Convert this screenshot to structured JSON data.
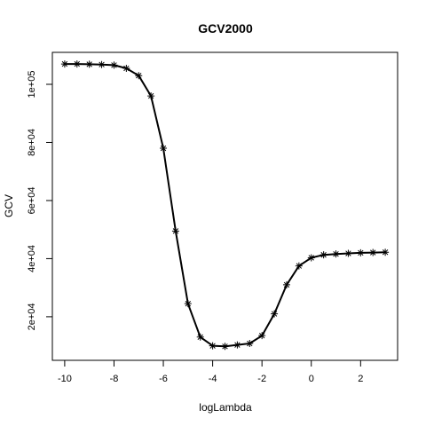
{
  "chart_data": {
    "type": "line",
    "title": "GCV2000",
    "xlabel": "logLambda",
    "ylabel": "GCV",
    "xlim": [
      -10.5,
      3.5
    ],
    "ylim": [
      5000,
      111000
    ],
    "grid": false,
    "x_ticks": [
      -10,
      -8,
      -6,
      -4,
      -2,
      0,
      2
    ],
    "x_tick_labels": [
      "-10",
      "-8",
      "-6",
      "-4",
      "-2",
      "0",
      "2"
    ],
    "y_ticks": [
      20000,
      40000,
      60000,
      80000,
      100000
    ],
    "y_tick_labels": [
      "2e+04",
      "4e+04",
      "6e+04",
      "8e+04",
      "1e+05"
    ],
    "marker": "asterisk",
    "line_color": "#000000",
    "series": [
      {
        "x": [
          -10,
          -9.5,
          -9,
          -8.5,
          -8,
          -7.5,
          -7,
          -6.5,
          -6,
          -5.5,
          -5,
          -4.5,
          -4,
          -3.5,
          -3,
          -2.5,
          -2,
          -1.5,
          -1,
          -0.5,
          0,
          0.5,
          1,
          1.5,
          2,
          2.5,
          3
        ],
        "y": [
          107000,
          107000,
          106900,
          106800,
          106600,
          105500,
          103000,
          96000,
          78000,
          49500,
          24500,
          13000,
          10000,
          9800,
          10300,
          10800,
          13500,
          21000,
          31000,
          37500,
          40300,
          41300,
          41600,
          41800,
          42000,
          42100,
          42200
        ]
      }
    ]
  }
}
